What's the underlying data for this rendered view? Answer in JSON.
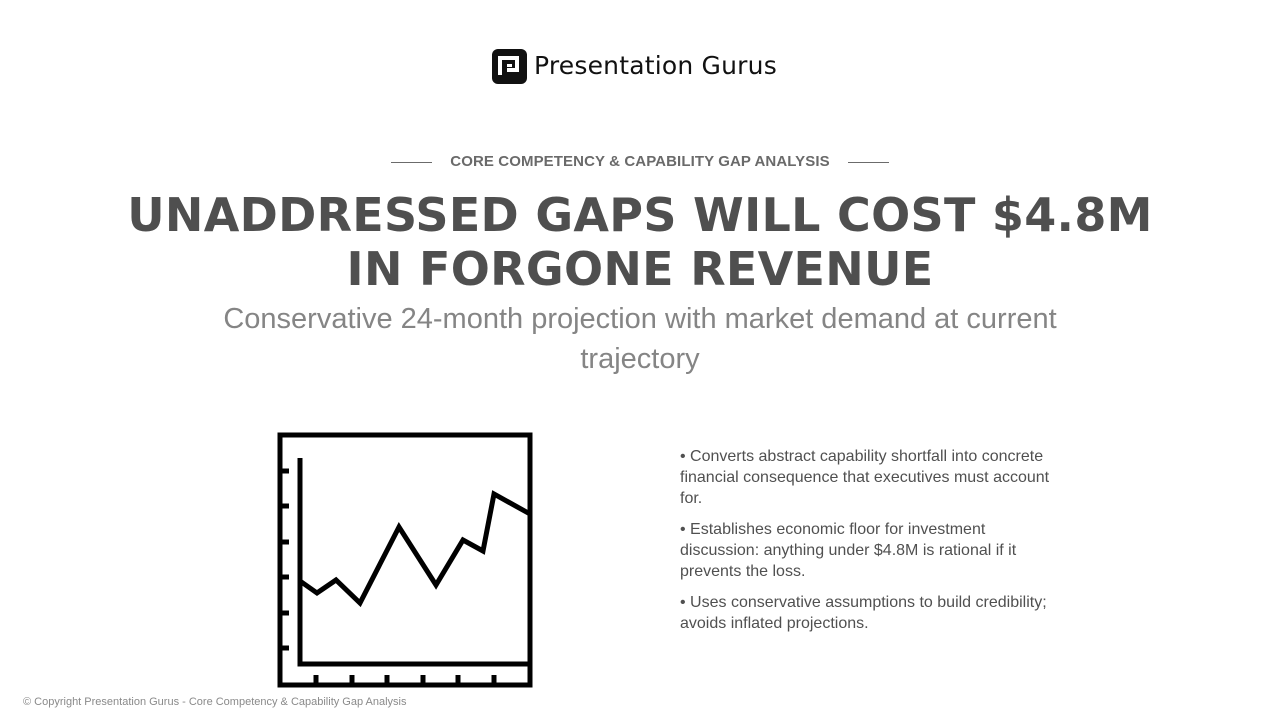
{
  "brand": {
    "name": "Presentation Gurus",
    "logo_icon": "pg-logo-icon",
    "logo_color": "#111111"
  },
  "slide": {
    "eyebrow": "CORE COMPETENCY & CAPABILITY GAP ANALYSIS",
    "headline": "UNADDRESSED GAPS WILL COST $4.8M IN FORGONE REVENUE",
    "subhead": "Conservative 24-month projection with market demand at current trajectory",
    "illustration_icon": "line-chart-icon",
    "bullets": [
      "Converts abstract capability shortfall into concrete financial consequence that executives must account for.",
      "Establishes economic floor for investment discussion: anything under $4.8M is rational if it prevents the loss.",
      "Uses conservative assumptions to build credibility; avoids inflated projections."
    ]
  },
  "footer": {
    "text": "© Copyright Presentation Gurus - Core Competency & Capability Gap Analysis"
  },
  "colors": {
    "headline": "#4f4f4f",
    "eyebrow": "#6a6a6a",
    "subhead": "#858585",
    "body": "#505050",
    "footer": "#8a8a8a",
    "background": "#ffffff"
  }
}
